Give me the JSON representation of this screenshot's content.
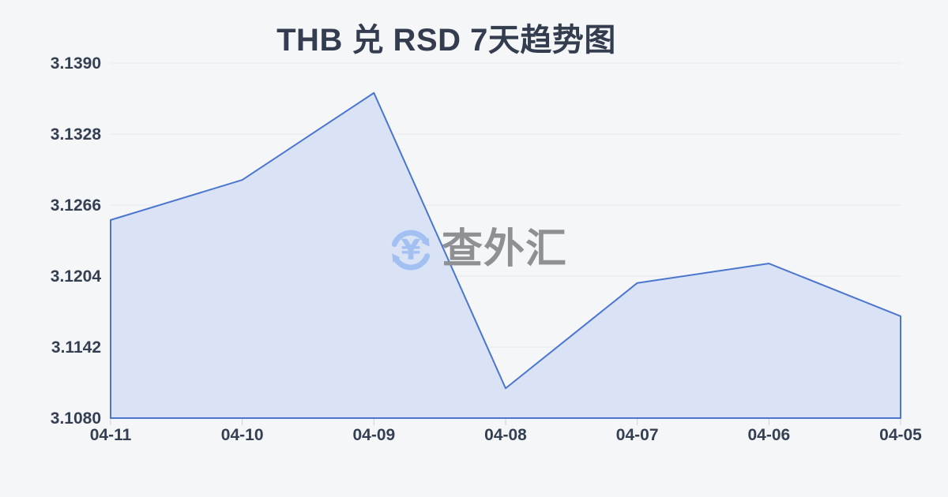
{
  "header": {
    "title": "THB 兑 RSD 7天趋势图"
  },
  "watermark": {
    "icon": "currency-exchange-icon",
    "text": "查外汇"
  },
  "chart_data": {
    "type": "area",
    "title": "THB 兑 RSD 7天趋势图",
    "categories": [
      "04-11",
      "04-10",
      "04-09",
      "04-08",
      "04-07",
      "04-06",
      "04-05"
    ],
    "series": [
      {
        "name": "THB 兑 RSD",
        "values": [
          3.1253,
          3.1288,
          3.1364,
          3.1106,
          3.1198,
          3.1215,
          3.1169
        ]
      }
    ],
    "xlabel": "",
    "ylabel": "",
    "ylim": [
      3.108,
      3.139
    ],
    "yticks": [
      "3.1390",
      "3.1328",
      "3.1266",
      "3.1204",
      "3.1142",
      "3.1080"
    ],
    "grid": true,
    "legend": false,
    "colors": {
      "background": "#f5f6f8",
      "line": "#4b76cf",
      "fill": "#dae2f5",
      "grid": "#e6e8ec",
      "tick": "#ccd0d6",
      "axis_text": "#353f52",
      "title_text": "#333d4f",
      "watermark_icon": "#a2c0f2",
      "watermark_text": "#8e9094"
    }
  }
}
